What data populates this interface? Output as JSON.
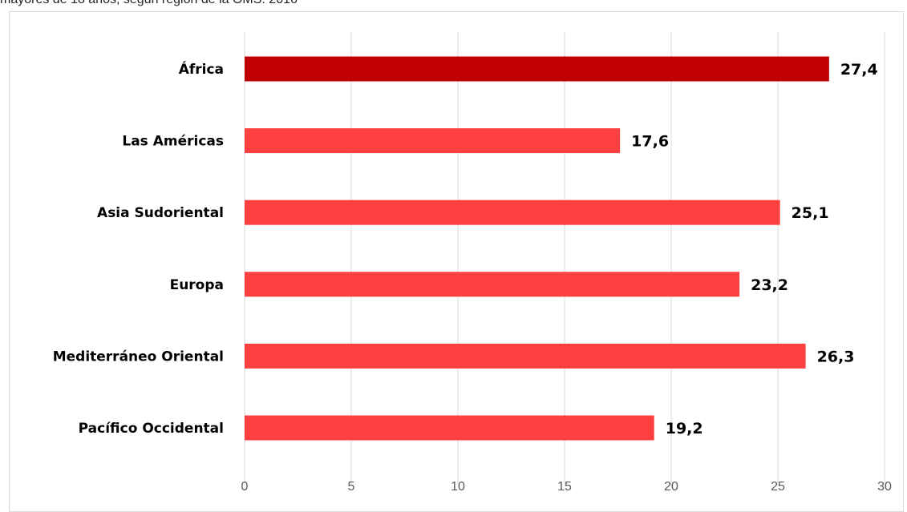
{
  "caption": "mayores de 18 años, según región de la OMS. 2016",
  "chart_data": {
    "type": "bar",
    "orientation": "horizontal",
    "categories": [
      "África",
      "Las Américas",
      "Asia Sudoriental",
      "Europa",
      "Mediterráneo Oriental",
      "Pacífico Occidental"
    ],
    "values": [
      27.4,
      17.6,
      25.1,
      23.2,
      26.3,
      19.2
    ],
    "value_labels": [
      "27,4",
      "17,6",
      "25,1",
      "23,2",
      "26,3",
      "19,2"
    ],
    "xlim": [
      0,
      30
    ],
    "xticks": [
      0,
      5,
      10,
      15,
      20,
      25,
      30
    ],
    "xtick_labels": [
      "0",
      "5",
      "10",
      "15",
      "20",
      "25",
      "30"
    ],
    "grid": "vertical",
    "highlight_index": 0,
    "colors": {
      "bar": "#ff4040",
      "highlight": "#c00000",
      "grid": "#d9d9d9",
      "tick_text": "#595959"
    }
  }
}
